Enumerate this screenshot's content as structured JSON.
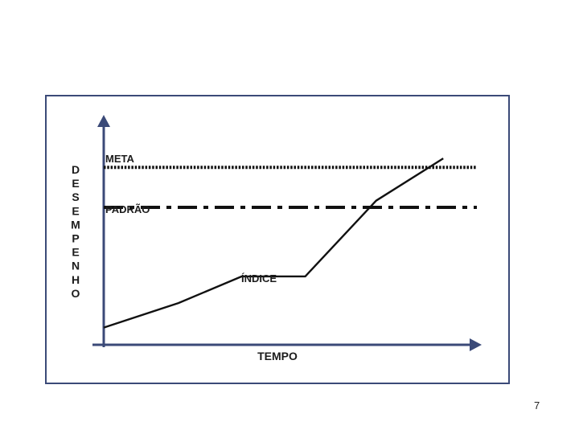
{
  "slide": {
    "page_number": "7"
  },
  "colors": {
    "frame": "#3b4a78",
    "axis": "#3b4a78",
    "lines": "#111111",
    "background": "#ffffff"
  },
  "chart_data": {
    "type": "line",
    "title": "",
    "xlabel": "TEMPO",
    "ylabel": "DESEMPENHO",
    "xlim": [
      0,
      100
    ],
    "ylim": [
      0,
      100
    ],
    "grid": false,
    "ticks": "none",
    "series": [
      {
        "name": "META",
        "style": "dotted",
        "x": [
          0,
          100
        ],
        "y": [
          79,
          79
        ]
      },
      {
        "name": "PADRÃO",
        "style": "dash-dot",
        "x": [
          0,
          100
        ],
        "y": [
          61,
          61
        ]
      },
      {
        "name": "ÍNDICE",
        "style": "solid",
        "x": [
          0,
          20,
          37,
          54,
          73,
          91
        ],
        "y": [
          7,
          18,
          30,
          30,
          64,
          83
        ]
      }
    ]
  }
}
